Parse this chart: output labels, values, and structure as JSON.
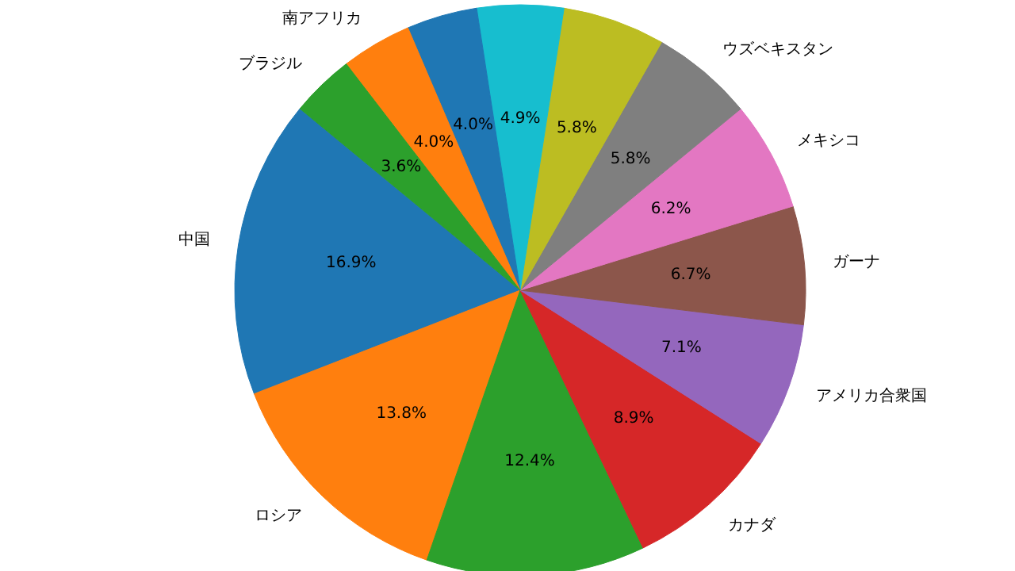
{
  "chart_data": {
    "type": "pie",
    "categories": [
      "中国",
      "ロシア",
      null,
      "カナダ",
      "アメリカ合衆国",
      "ガーナ",
      "メキシコ",
      "ウズベキスタン",
      null,
      null,
      null,
      "南アフリカ",
      "ブラジル"
    ],
    "values": [
      16.9,
      13.8,
      12.4,
      8.9,
      7.1,
      6.7,
      6.2,
      5.8,
      5.8,
      4.9,
      4.0,
      4.0,
      3.6
    ],
    "value_labels": [
      "16.9%",
      "13.8%",
      "12.4%",
      "8.9%",
      "7.1%",
      "6.7%",
      "6.2%",
      "5.8%",
      "5.8%",
      "4.9%",
      "4.0%",
      "4.0%",
      "3.6%"
    ],
    "colors": [
      "#1f77b4",
      "#ff7f0e",
      "#2ca02c",
      "#d62728",
      "#9467bd",
      "#8c564b",
      "#e377c2",
      "#7f7f7f",
      "#bcbd22",
      "#17becf",
      "#1f77b4",
      "#ff7f0e",
      "#2ca02c"
    ]
  }
}
